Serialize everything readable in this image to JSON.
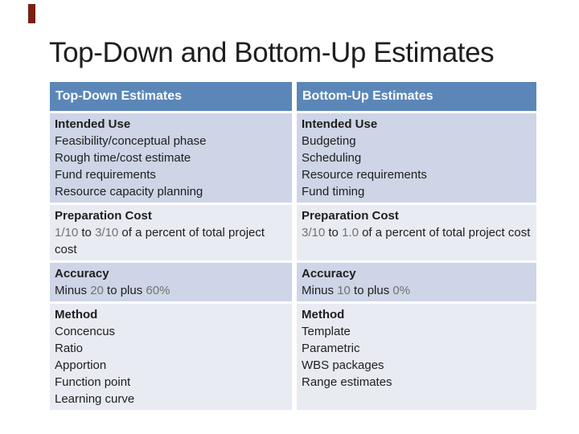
{
  "title": "Top-Down and Bottom-Up Estimates",
  "colors": {
    "accent_bar": "#7A1F12",
    "title_text": "#1E1E1E",
    "body_text": "#1E1E1E",
    "number_text": "#717171",
    "header_bg": "#5B87B8",
    "header_text": "#FFFFFF",
    "row_dark": "#CDD5E6",
    "row_light": "#E9EBF3"
  },
  "table": {
    "columns": [
      {
        "header": "Top-Down Estimates",
        "rows": [
          {
            "heading": "Intended Use",
            "lines": [
              "Feasibility/conceptual phase",
              "Rough time/cost estimate",
              "Fund requirements",
              "Resource capacity planning"
            ]
          },
          {
            "heading": "Preparation Cost",
            "lines": [
              "1/10 to 3/10 of a percent of total project cost"
            ]
          },
          {
            "heading": "Accuracy",
            "lines": [
              "Minus 20 to plus 60%"
            ]
          },
          {
            "heading": "Method",
            "lines": [
              "Concencus",
              "Ratio",
              "Apportion",
              "Function point",
              "Learning curve"
            ]
          }
        ]
      },
      {
        "header": "Bottom-Up Estimates",
        "rows": [
          {
            "heading": "Intended Use",
            "lines": [
              "Budgeting",
              "Scheduling",
              "Resource requirements",
              "Fund timing"
            ]
          },
          {
            "heading": "Preparation Cost",
            "lines": [
              "3/10 to 1.0 of a percent of total project cost"
            ]
          },
          {
            "heading": "Accuracy",
            "lines": [
              "Minus 10 to plus 0%"
            ]
          },
          {
            "heading": "Method",
            "lines": [
              "Template",
              "Parametric",
              "WBS packages",
              "Range estimates"
            ]
          }
        ]
      }
    ]
  }
}
